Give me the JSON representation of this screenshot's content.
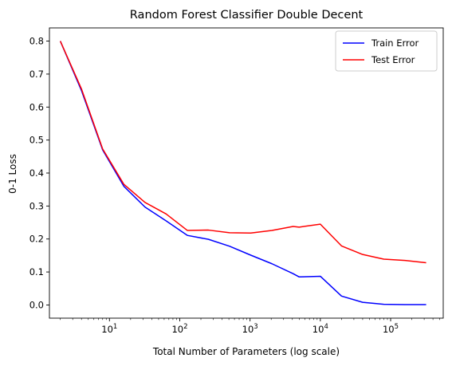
{
  "chart_data": {
    "type": "line",
    "title": "Random Forest Classifier Double Decent",
    "xlabel": "Total Number of Parameters (log scale)",
    "ylabel": "0-1 Loss",
    "xscale": "log",
    "xlim": [
      1.4,
      560000
    ],
    "ylim": [
      -0.04,
      0.84
    ],
    "x_ticks": [
      {
        "value": 10,
        "base": "10",
        "exp": "1"
      },
      {
        "value": 100,
        "base": "10",
        "exp": "2"
      },
      {
        "value": 1000,
        "base": "10",
        "exp": "3"
      },
      {
        "value": 10000,
        "base": "10",
        "exp": "4"
      },
      {
        "value": 100000,
        "base": "10",
        "exp": "5"
      }
    ],
    "y_ticks": [
      0.0,
      0.1,
      0.2,
      0.3,
      0.4,
      0.5,
      0.6,
      0.7,
      0.8
    ],
    "y_tick_labels": [
      "0.0",
      "0.1",
      "0.2",
      "0.3",
      "0.4",
      "0.5",
      "0.6",
      "0.7",
      "0.8"
    ],
    "grid": false,
    "legend_position": "top-right",
    "x": [
      2,
      4,
      8,
      16,
      32,
      64,
      128,
      256,
      512,
      1024,
      2048,
      4096,
      5000,
      10000,
      20000,
      40000,
      80000,
      160000,
      320000
    ],
    "series": [
      {
        "name": "Train Error",
        "color": "#0000ff",
        "values": [
          0.8,
          0.65,
          0.47,
          0.36,
          0.297,
          0.255,
          0.211,
          0.199,
          0.178,
          0.151,
          0.125,
          0.095,
          0.085,
          0.087,
          0.027,
          0.008,
          0.002,
          0.001,
          0.001
        ]
      },
      {
        "name": "Test Error",
        "color": "#ff0000",
        "values": [
          0.8,
          0.655,
          0.473,
          0.366,
          0.311,
          0.276,
          0.226,
          0.227,
          0.219,
          0.218,
          0.226,
          0.238,
          0.236,
          0.245,
          0.179,
          0.153,
          0.139,
          0.135,
          0.128
        ]
      }
    ]
  }
}
